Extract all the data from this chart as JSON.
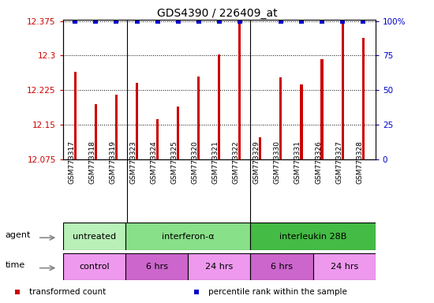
{
  "title": "GDS4390 / 226409_at",
  "samples": [
    "GSM773317",
    "GSM773318",
    "GSM773319",
    "GSM773323",
    "GSM773324",
    "GSM773325",
    "GSM773320",
    "GSM773321",
    "GSM773322",
    "GSM773329",
    "GSM773330",
    "GSM773331",
    "GSM773326",
    "GSM773327",
    "GSM773328"
  ],
  "bar_values": [
    12.265,
    12.195,
    12.215,
    12.24,
    12.162,
    12.19,
    12.255,
    12.302,
    12.375,
    12.122,
    12.253,
    12.237,
    12.292,
    12.375,
    12.338
  ],
  "percentile_values": [
    100,
    100,
    100,
    100,
    100,
    100,
    100,
    100,
    100,
    100,
    100,
    100,
    100,
    100,
    100
  ],
  "percentile_show": [
    1,
    1,
    1,
    1,
    1,
    1,
    1,
    1,
    1,
    0,
    1,
    1,
    1,
    1,
    1
  ],
  "ymin": 12.075,
  "ymax": 12.375,
  "yticks": [
    12.075,
    12.15,
    12.225,
    12.3,
    12.375
  ],
  "ytick_labels": [
    "12.075",
    "12.15",
    "12.225",
    "12.3",
    "12.375"
  ],
  "right_yticks": [
    0,
    25,
    50,
    75,
    100
  ],
  "right_ytick_labels": [
    "0",
    "25",
    "50",
    "75",
    "100%"
  ],
  "agent_groups": [
    {
      "label": "untreated",
      "start": 0,
      "end": 3,
      "color": "#b8f0b8"
    },
    {
      "label": "interferon-α",
      "start": 3,
      "end": 9,
      "color": "#88e088"
    },
    {
      "label": "interleukin 28B",
      "start": 9,
      "end": 15,
      "color": "#44bb44"
    }
  ],
  "time_groups": [
    {
      "label": "control",
      "start": 0,
      "end": 3,
      "color": "#ee99ee"
    },
    {
      "label": "6 hrs",
      "start": 3,
      "end": 6,
      "color": "#cc66cc"
    },
    {
      "label": "24 hrs",
      "start": 6,
      "end": 9,
      "color": "#ee99ee"
    },
    {
      "label": "6 hrs",
      "start": 9,
      "end": 12,
      "color": "#cc66cc"
    },
    {
      "label": "24 hrs",
      "start": 12,
      "end": 15,
      "color": "#ee99ee"
    }
  ],
  "bar_color": "#cc0000",
  "percentile_color": "#0000cc",
  "bar_width": 0.12,
  "legend_items": [
    {
      "color": "#cc0000",
      "label": "transformed count"
    },
    {
      "color": "#0000cc",
      "label": "percentile rank within the sample"
    }
  ],
  "background_color": "#ffffff",
  "tick_label_color_left": "#cc0000",
  "tick_label_color_right": "#0000cc",
  "group_separators": [
    2.5,
    8.5
  ],
  "label_bg": "#dddddd"
}
